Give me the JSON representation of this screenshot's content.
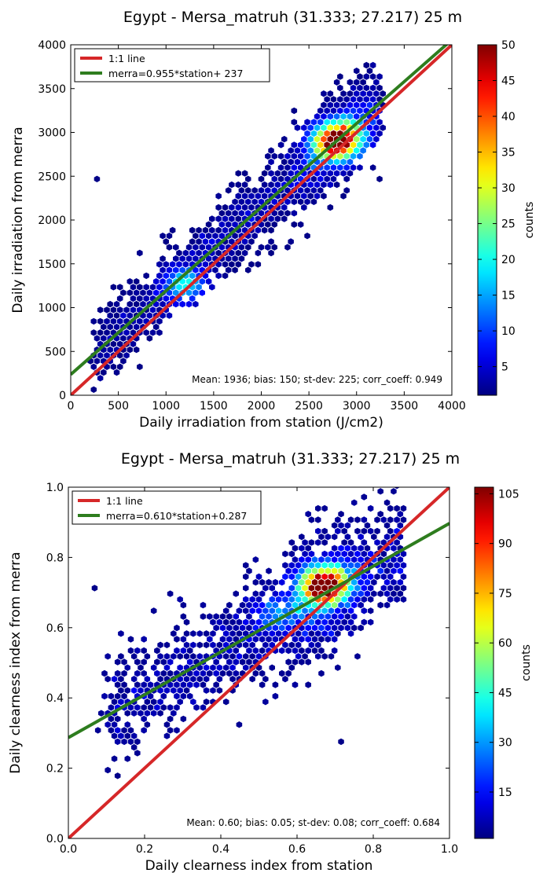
{
  "chart_data": [
    {
      "type": "scatter",
      "subtype": "hexbin-density",
      "title": "Egypt - Mersa_matruh (31.333; 27.217) 25 m",
      "xlabel": "Daily irradiation from station (J/cm2)",
      "ylabel": "Daily irradiation from merra",
      "xlim": [
        0,
        4000
      ],
      "ylim": [
        0,
        4000
      ],
      "xticks": [
        0,
        500,
        1000,
        1500,
        2000,
        2500,
        3000,
        3500,
        4000
      ],
      "yticks": [
        0,
        500,
        1000,
        1500,
        2000,
        2500,
        3000,
        3500,
        4000
      ],
      "grid": false,
      "legend_position": "top-left",
      "series": [
        {
          "name": "1:1 line",
          "color": "#d62728",
          "slope": 1,
          "intercept": 0,
          "x": [
            0,
            4000
          ],
          "y": [
            0,
            4000
          ]
        },
        {
          "name": "merra=0.955*station+  237",
          "color": "#2e7d1e",
          "slope": 0.955,
          "intercept": 237,
          "x": [
            0,
            4000
          ],
          "y": [
            237,
            4057
          ]
        }
      ],
      "density": {
        "center_line": {
          "slope": 0.955,
          "intercept": 237
        },
        "x_range": [
          200,
          3250
        ],
        "scatter_spread": 225,
        "peak": [
          2800,
          2900
        ],
        "peak_count": 48,
        "secondary_peak": [
          1200,
          1260
        ],
        "secondary_count": 22,
        "outliers": [
          [
            250,
            2500
          ],
          [
            3250,
            2500
          ],
          [
            2700,
            2150
          ],
          [
            700,
            350
          ]
        ]
      },
      "annotation": "Mean: 1936; bias: 150; st-dev: 225; corr_coeff: 0.949",
      "colorbar": {
        "label": "counts",
        "min": 1,
        "max": 50,
        "ticks": [
          5,
          10,
          15,
          20,
          25,
          30,
          35,
          40,
          45,
          50
        ]
      }
    },
    {
      "type": "scatter",
      "subtype": "hexbin-density",
      "title": "Egypt - Mersa_matruh (31.333; 27.217) 25 m",
      "xlabel": "Daily clearness index from station",
      "ylabel": "Daily clearness index from merra",
      "xlim": [
        0.0,
        1.0
      ],
      "ylim": [
        0.0,
        1.0
      ],
      "xticks": [
        "0.0",
        "0.2",
        "0.4",
        "0.6",
        "0.8",
        "1.0"
      ],
      "yticks": [
        "0.0",
        "0.2",
        "0.4",
        "0.6",
        "0.8",
        "1.0"
      ],
      "grid": false,
      "legend_position": "top-left",
      "series": [
        {
          "name": "1:1 line",
          "color": "#d62728",
          "slope": 1,
          "intercept": 0,
          "x": [
            0,
            1
          ],
          "y": [
            0,
            1
          ]
        },
        {
          "name": "merra=0.610*station+0.287",
          "color": "#2e7d1e",
          "slope": 0.61,
          "intercept": 0.287,
          "x": [
            0,
            1
          ],
          "y": [
            0.287,
            0.897
          ]
        }
      ],
      "density": {
        "center_line": {
          "slope": 0.61,
          "intercept": 0.287
        },
        "x_range": [
          0.08,
          0.88
        ],
        "scatter_spread": 0.08,
        "peak": [
          0.67,
          0.72
        ],
        "peak_count": 105,
        "secondary_peak": [
          0.55,
          0.64
        ],
        "secondary_count": 30,
        "outliers": [
          [
            0.07,
            0.71
          ],
          [
            0.88,
            0.68
          ],
          [
            0.72,
            0.28
          ],
          [
            0.13,
            0.18
          ]
        ]
      },
      "annotation": "Mean: 0.60; bias: 0.05; st-dev: 0.08; corr_coeff: 0.684",
      "colorbar": {
        "label": "counts",
        "min": 1,
        "max": 107,
        "ticks": [
          15,
          30,
          45,
          60,
          75,
          90,
          105
        ]
      }
    }
  ]
}
